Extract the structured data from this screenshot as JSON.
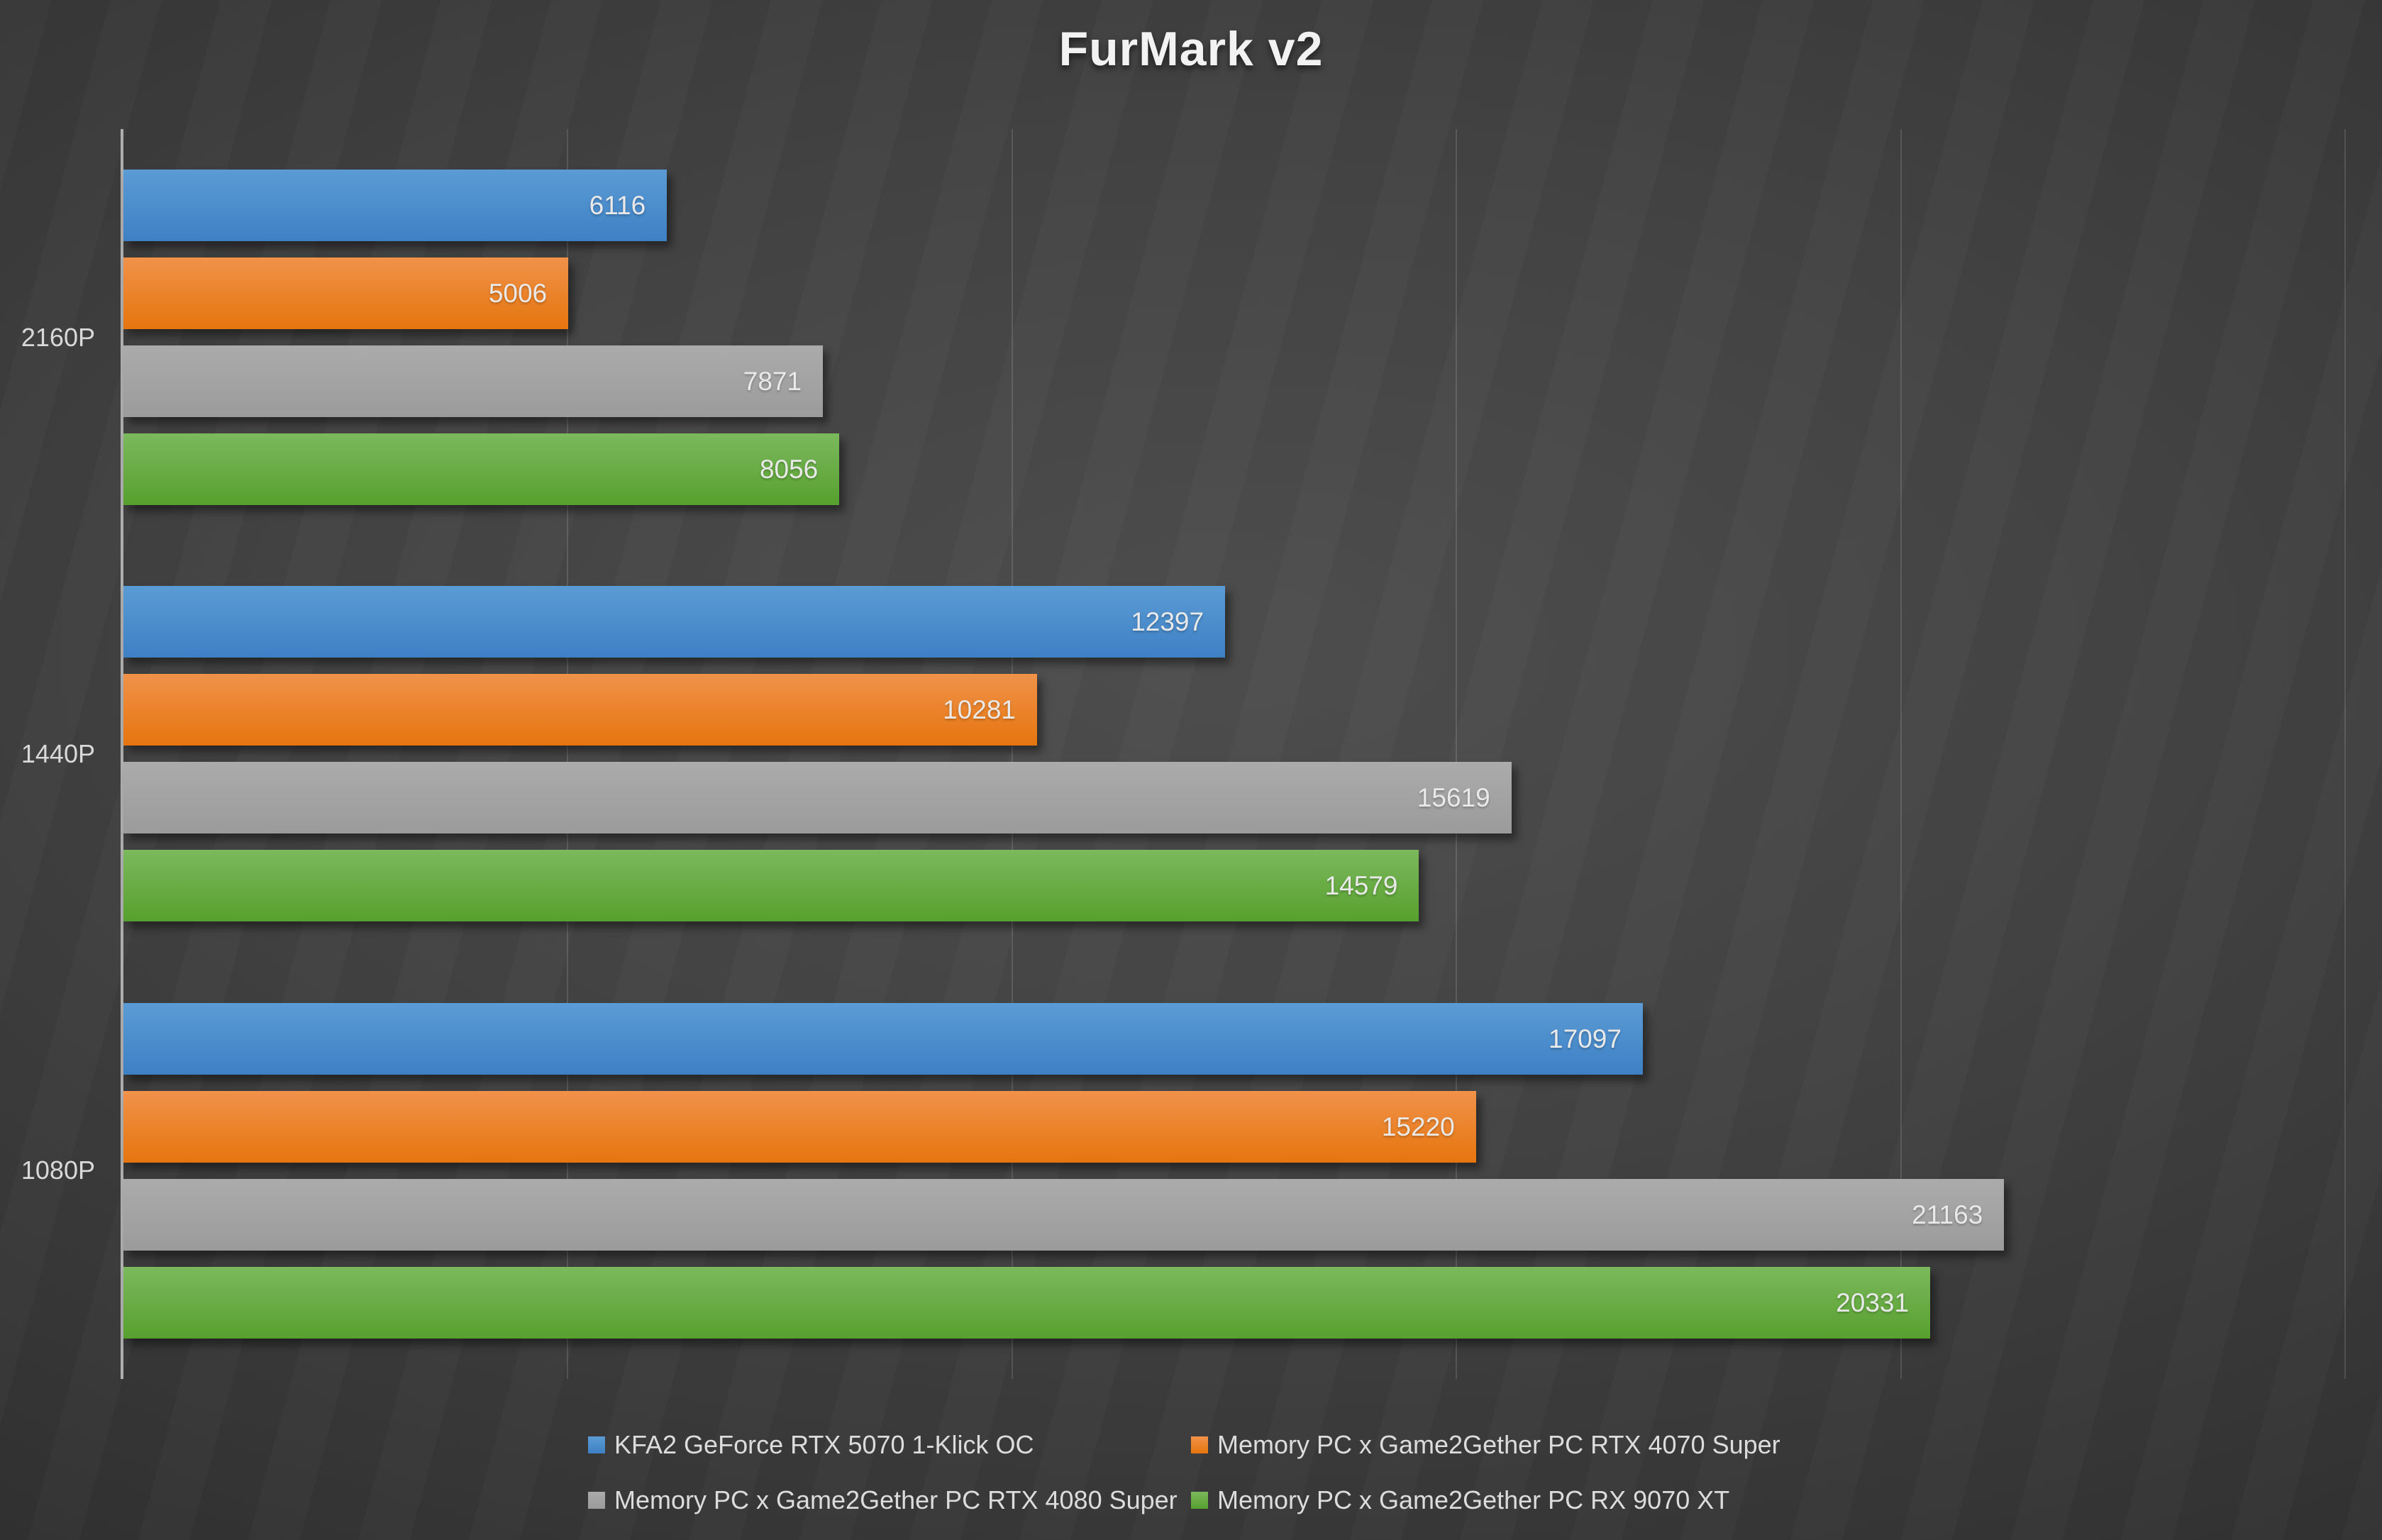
{
  "chart_data": {
    "type": "bar",
    "orientation": "horizontal",
    "title": "FurMark v2",
    "categories": [
      "2160P",
      "1440P",
      "1080P"
    ],
    "series": [
      {
        "name": "KFA2 GeForce RTX 5070 1-Klick OC",
        "color_top": "#5b9bd5",
        "color_bottom": "#3e80c4",
        "values": [
          6116,
          12397,
          17097
        ]
      },
      {
        "name": "Memory PC x Game2Gether PC RTX 4070 Super",
        "color_top": "#f0924a",
        "color_bottom": "#e6750e",
        "values": [
          5006,
          10281,
          15220
        ]
      },
      {
        "name": "Memory PC x Game2Gether PC RTX 4080 Super",
        "color_top": "#ababab",
        "color_bottom": "#9b9b9b",
        "values": [
          7871,
          15619,
          21163
        ]
      },
      {
        "name": "Memory PC x Game2Gether PC RX 9070 XT",
        "color_top": "#7bb95d",
        "color_bottom": "#57a02e",
        "values": [
          8056,
          14579,
          20331
        ]
      }
    ],
    "xlim": [
      0,
      25000
    ],
    "gridline_interval": 5000,
    "grid": true,
    "value_labels": "inside-end",
    "legend_position": "bottom",
    "axis_line_color": "#aeaeae",
    "background_center": "#4e4e4e",
    "background_edge": "#262626"
  }
}
